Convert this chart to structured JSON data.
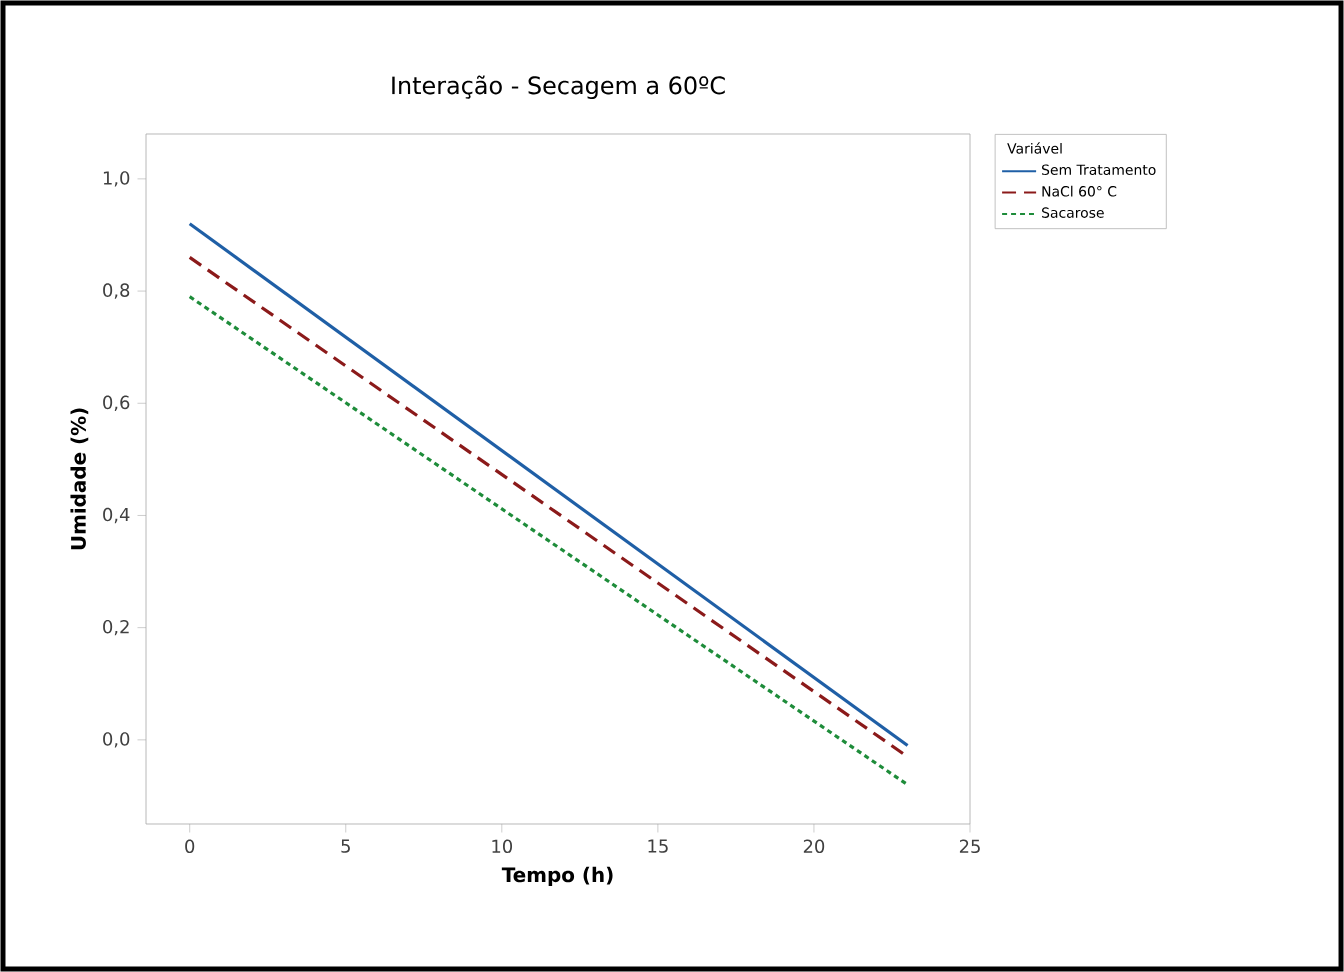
{
  "chart_data": {
    "type": "line",
    "title": "Interação - Secagem a 60ºC",
    "xlabel": "Tempo (h)",
    "ylabel": "Umidade (%)",
    "legend_title": "Variável",
    "legend": "top right",
    "grid": false,
    "x": [
      0,
      23
    ],
    "series": [
      {
        "name": "Sem Tratamento",
        "color": "#1f5fa6",
        "values": [
          0.92,
          -0.01
        ],
        "line_style": "solid"
      },
      {
        "name": "NaCl 60° C",
        "color": "#8b1a1a",
        "values": [
          0.86,
          -0.03
        ],
        "line_style": "dashed"
      },
      {
        "name": "Sacarose",
        "color": "#1e8c3a",
        "values": [
          0.79,
          -0.08
        ],
        "line_style": "dotted"
      }
    ],
    "xlim": [
      -1.4,
      25
    ],
    "xticks": [
      0,
      5,
      10,
      15,
      20,
      25
    ],
    "ylim": [
      -0.15,
      1.08
    ],
    "yticks": [
      {
        "value": 0,
        "label": "0,0"
      },
      {
        "value": 0.2,
        "label": "0,2"
      },
      {
        "value": 0.4,
        "label": "0,4"
      },
      {
        "value": 0.6,
        "label": "0,6"
      },
      {
        "value": 0.8,
        "label": "0,8"
      },
      {
        "value": 1.0,
        "label": "1,0"
      }
    ]
  }
}
